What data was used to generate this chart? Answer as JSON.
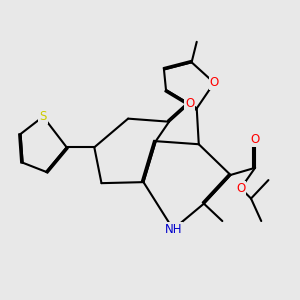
{
  "background_color": "#e8e8e8",
  "bond_color": "#000000",
  "atom_colors": {
    "O": "#ff0000",
    "N": "#0000cc",
    "S": "#cccc00",
    "C": "#000000",
    "H": "#000000"
  },
  "figsize": [
    3.0,
    3.0
  ],
  "dpi": 100
}
